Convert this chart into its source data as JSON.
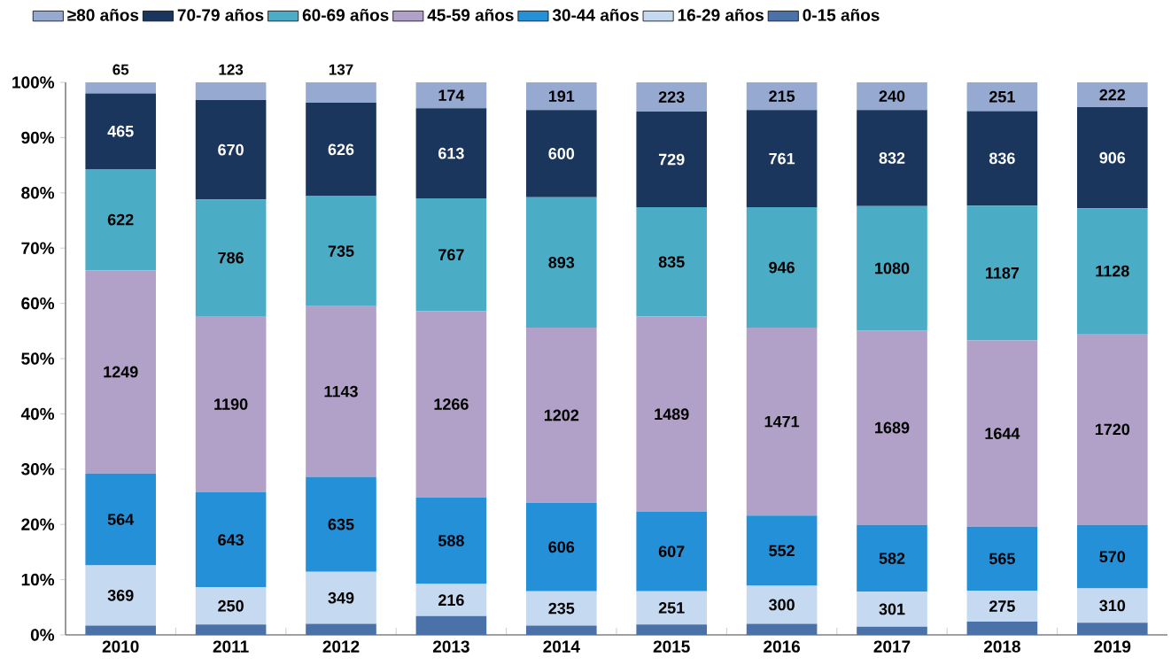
{
  "chart_data": {
    "type": "bar",
    "stacked": true,
    "legend": "top",
    "categories": [
      "2010",
      "2011",
      "2012",
      "2013",
      "2014",
      "2015",
      "2016",
      "2017",
      "2018",
      "2019"
    ],
    "ylim": [
      0,
      100
    ],
    "yticks": [
      {
        "value": 0,
        "label": "0%"
      },
      {
        "value": 10,
        "label": "10%"
      },
      {
        "value": 20,
        "label": "20%"
      },
      {
        "value": 30,
        "label": "30%"
      },
      {
        "value": 40,
        "label": "40%"
      },
      {
        "value": 50,
        "label": "50%"
      },
      {
        "value": 60,
        "label": "60%"
      },
      {
        "value": 70,
        "label": "70%"
      },
      {
        "value": 80,
        "label": "80%"
      },
      {
        "value": 90,
        "label": "90%"
      },
      {
        "value": 100,
        "label": "100%"
      }
    ],
    "series": [
      {
        "name": "0-15 años",
        "color": "#4a72a8",
        "values": [
          1.7,
          1.9,
          2.0,
          3.4,
          1.7,
          1.9,
          2.0,
          1.5,
          2.4,
          2.2
        ]
      },
      {
        "name": "16-29 años",
        "color": "#c5d9f1",
        "values": [
          10.9,
          6.7,
          9.4,
          5.8,
          6.2,
          6.0,
          6.9,
          6.3,
          5.6,
          6.2
        ]
      },
      {
        "name": "30-44 años",
        "color": "#2490d8",
        "values": [
          16.6,
          17.2,
          17.2,
          15.7,
          16.0,
          14.4,
          12.7,
          12.1,
          11.6,
          11.5
        ]
      },
      {
        "name": "45-59 años",
        "color": "#b1a0c7",
        "values": [
          36.8,
          31.9,
          30.9,
          33.7,
          31.7,
          35.3,
          34.0,
          35.2,
          33.7,
          34.6
        ]
      },
      {
        "name": "60-69 años",
        "color": "#4bacc6",
        "values": [
          18.3,
          21.1,
          19.9,
          20.4,
          23.6,
          19.8,
          21.8,
          22.5,
          24.4,
          22.7
        ]
      },
      {
        "name": "70-79 años",
        "color": "#1b365d",
        "values": [
          13.7,
          18.0,
          16.9,
          16.3,
          15.8,
          17.3,
          17.6,
          17.4,
          17.1,
          18.3
        ]
      },
      {
        "name": "≥80 años",
        "color": "#95a9d1",
        "values": [
          2.0,
          3.2,
          3.7,
          4.7,
          5.0,
          5.3,
          5.0,
          5.0,
          5.2,
          4.5
        ]
      }
    ],
    "annotations": [
      "369",
      "564",
      "1249",
      "622",
      "465",
      "65",
      "250",
      "643",
      "1190",
      "786",
      "670",
      "123",
      "349",
      "635",
      "1143",
      "735",
      "626",
      "137",
      "216",
      "588",
      "1266",
      "767",
      "613",
      "174",
      "235",
      "606",
      "1202",
      "893",
      "600",
      "191",
      "251",
      "607",
      "1489",
      "835",
      "729",
      "223",
      "300",
      "552",
      "1471",
      "946",
      "761",
      "215",
      "301",
      "582",
      "1689",
      "1080",
      "832",
      "240",
      "275",
      "565",
      "1644",
      "1187",
      "836",
      "251",
      "310",
      "570",
      "1720",
      "1128",
      "906",
      "222"
    ]
  }
}
